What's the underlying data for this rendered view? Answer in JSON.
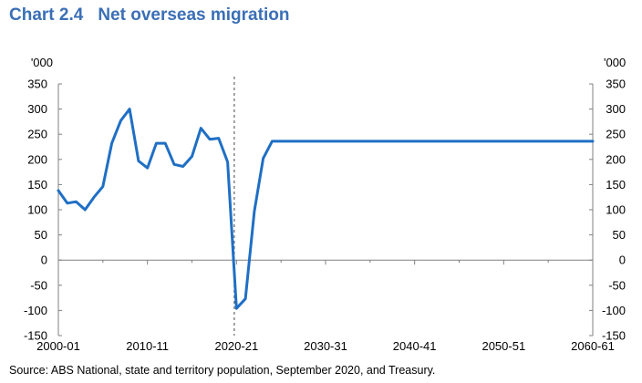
{
  "chart_data": {
    "type": "line",
    "title_number": "Chart 2.4",
    "title": "Net overseas migration",
    "unit_label": "'000",
    "ylim": [
      -150,
      350
    ],
    "yticks": [
      -150,
      -100,
      -50,
      0,
      50,
      100,
      150,
      200,
      250,
      300,
      350
    ],
    "xlim": [
      2000,
      2060
    ],
    "xticks": [
      {
        "year": 2000,
        "label": "2000-01"
      },
      {
        "year": 2010,
        "label": "2010-11"
      },
      {
        "year": 2020,
        "label": "2020-21"
      },
      {
        "year": 2030,
        "label": "2030-31"
      },
      {
        "year": 2040,
        "label": "2040-41"
      },
      {
        "year": 2050,
        "label": "2050-51"
      },
      {
        "year": 2060,
        "label": "2060-61"
      }
    ],
    "forecast_divider_year": 2019.75,
    "line_color": "#1f6fc5",
    "series": [
      {
        "x": [
          2000,
          2001,
          2002,
          2003,
          2004,
          2005,
          2006,
          2007,
          2008,
          2009,
          2010,
          2011,
          2012,
          2013,
          2014,
          2015,
          2016,
          2017,
          2018,
          2019,
          2020,
          2021,
          2022,
          2023,
          2024,
          2025,
          2030,
          2040,
          2050,
          2060
        ],
        "values": [
          138,
          113,
          116,
          100,
          125,
          146,
          232,
          277,
          300,
          197,
          183,
          232,
          232,
          190,
          186,
          206,
          262,
          240,
          242,
          195,
          -96,
          -77,
          97,
          202,
          236,
          236,
          236,
          236,
          236,
          236
        ]
      }
    ]
  },
  "source": "Source: ABS National, state and territory population, September 2020, and Treasury."
}
